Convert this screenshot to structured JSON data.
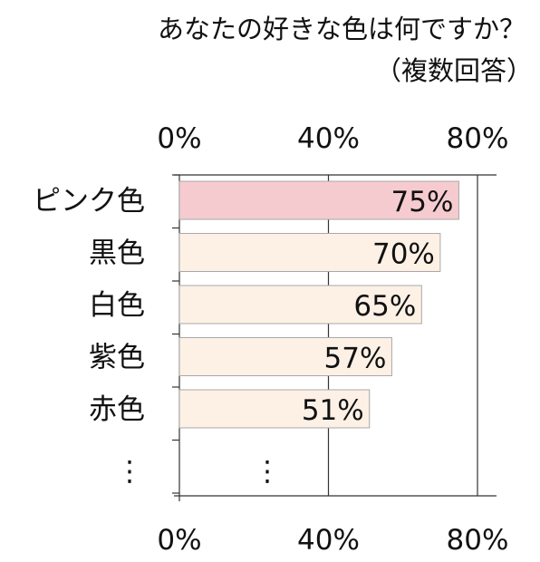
{
  "chart_data": {
    "type": "bar",
    "orientation": "horizontal",
    "title": "あなたの好きな色は何ですか？",
    "subtitle": "（複数回答）",
    "categories": [
      "ピンク色",
      "黒色",
      "白色",
      "紫色",
      "赤色"
    ],
    "values": [
      75,
      70,
      65,
      57,
      51
    ],
    "value_labels": [
      "75%",
      "70%",
      "65%",
      "57%",
      "51%"
    ],
    "xlim": [
      0,
      80
    ],
    "x_ticks": [
      0,
      40,
      80
    ],
    "x_tick_labels": [
      "0%",
      "40%",
      "80%"
    ],
    "x_axis_labels_position": "top and bottom",
    "ellipsis": "⋮",
    "grid": "vertical",
    "colors": {
      "highlight_fill": "#f6cbd0",
      "bar_fill": "#fdf1e6",
      "bar_stroke": "#a8a8a8",
      "axis": "#333333",
      "grid": "#333333"
    }
  }
}
